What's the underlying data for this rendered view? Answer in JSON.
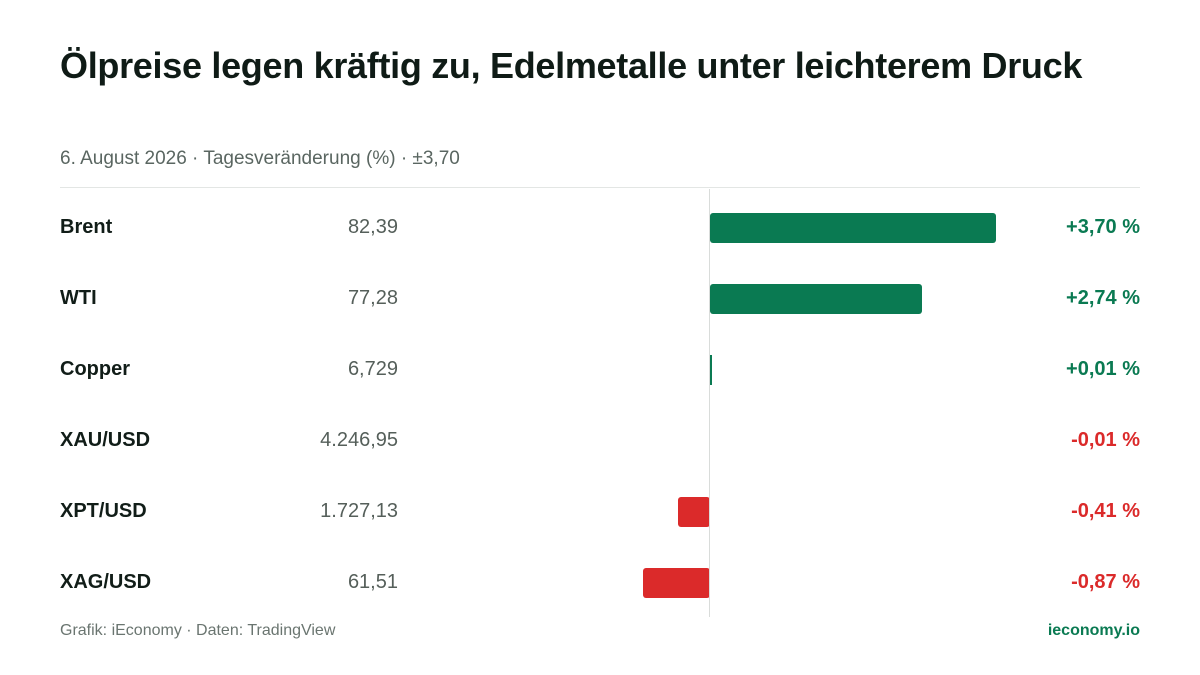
{
  "header": {
    "title": "Ölpreise legen kräftig zu, Edelmetalle unter leichterem Druck",
    "subtitle": "6. August 2026 · Tagesveränderung (%) · ±3,70"
  },
  "footer": {
    "source": "Grafik: iEconomy · Daten: TradingView",
    "brand": "ieconomy.io"
  },
  "colors": {
    "positive": "#0a7a52",
    "negative": "#db2a2a"
  },
  "chart_data": {
    "type": "bar",
    "orientation": "horizontal",
    "title": "Ölpreise legen kräftig zu, Edelmetalle unter leichterem Druck",
    "subtitle": "6. August 2026 · Tagesveränderung (%) · ±3,70",
    "xlim": [
      -3.7,
      3.7
    ],
    "grid": false,
    "categories": [
      "Brent",
      "WTI",
      "Copper",
      "XAU/USD",
      "XPT/USD",
      "XAG/USD"
    ],
    "prices": [
      "82,39",
      "77,28",
      "6,729",
      "4.246,95",
      "1.727,13",
      "61,51"
    ],
    "change_labels": [
      "+3,70 %",
      "+2,74 %",
      "+0,01 %",
      "-0,01 %",
      "-0,41 %",
      "-0,87 %"
    ],
    "values": [
      3.7,
      2.74,
      0.01,
      -0.01,
      -0.41,
      -0.87
    ]
  }
}
